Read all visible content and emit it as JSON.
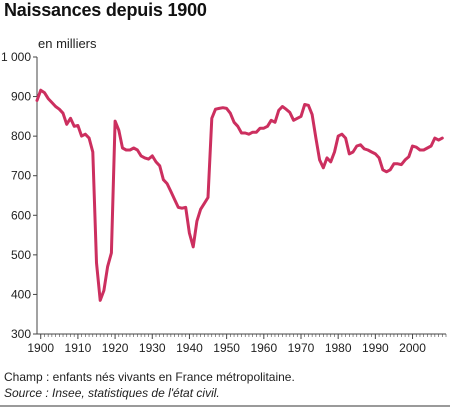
{
  "chart_data": {
    "type": "line",
    "title": "Naissances depuis 1900",
    "ylabel": "en milliers",
    "xlim": [
      1899,
      2009
    ],
    "ylim": [
      300,
      1000
    ],
    "yticks": [
      300,
      400,
      500,
      600,
      700,
      800,
      900,
      1000
    ],
    "ytick_labels": [
      "300",
      "400",
      "500",
      "600",
      "700",
      "800",
      "900",
      "1 000"
    ],
    "xticks": [
      1900,
      1910,
      1920,
      1930,
      1940,
      1950,
      1960,
      1970,
      1980,
      1990,
      2000
    ],
    "xtick_labels": [
      "1900",
      "1910",
      "1920",
      "1930",
      "1940",
      "1950",
      "1960",
      "1970",
      "1980",
      "1990",
      "2000"
    ],
    "grid": false,
    "line_color": "#cc2f5f",
    "series": [
      {
        "x": [
          1899,
          1900,
          1901,
          1902,
          1903,
          1904,
          1905,
          1906,
          1907,
          1908,
          1909,
          1910,
          1911,
          1912,
          1913,
          1914,
          1915,
          1916,
          1917,
          1918,
          1919,
          1920,
          1921,
          1922,
          1923,
          1924,
          1925,
          1926,
          1927,
          1928,
          1929,
          1930,
          1931,
          1932,
          1933,
          1934,
          1935,
          1936,
          1937,
          1938,
          1939,
          1940,
          1941,
          1942,
          1943,
          1944,
          1945,
          1946,
          1947,
          1948,
          1949,
          1950,
          1951,
          1952,
          1953,
          1954,
          1955,
          1956,
          1957,
          1958,
          1959,
          1960,
          1961,
          1962,
          1963,
          1964,
          1965,
          1966,
          1967,
          1968,
          1969,
          1970,
          1971,
          1972,
          1973,
          1974,
          1975,
          1976,
          1977,
          1978,
          1979,
          1980,
          1981,
          1982,
          1983,
          1984,
          1985,
          1986,
          1987,
          1988,
          1989,
          1990,
          1991,
          1992,
          1993,
          1994,
          1995,
          1996,
          1997,
          1998,
          1999,
          2000,
          2001,
          2002,
          2003,
          2004,
          2005,
          2006,
          2007,
          2008
        ],
        "values": [
          890,
          916,
          910,
          895,
          885,
          875,
          868,
          858,
          830,
          845,
          825,
          827,
          800,
          805,
          795,
          760,
          480,
          385,
          410,
          470,
          505,
          838,
          815,
          770,
          765,
          765,
          770,
          765,
          750,
          745,
          742,
          750,
          735,
          725,
          690,
          680,
          660,
          640,
          620,
          618,
          620,
          555,
          520,
          585,
          615,
          630,
          645,
          845,
          868,
          870,
          872,
          870,
          858,
          835,
          825,
          808,
          808,
          805,
          810,
          810,
          820,
          820,
          825,
          840,
          835,
          865,
          875,
          868,
          860,
          840,
          845,
          850,
          880,
          878,
          855,
          795,
          740,
          720,
          745,
          735,
          760,
          800,
          805,
          795,
          755,
          760,
          775,
          778,
          768,
          765,
          760,
          755,
          745,
          715,
          710,
          715,
          730,
          730,
          728,
          740,
          748,
          775,
          772,
          765,
          765,
          770,
          775,
          795,
          790,
          795
        ]
      }
    ]
  },
  "footer": {
    "scope": "Champ : enfants nés vivants en France métropolitaine.",
    "source": "Source : Insee, statistiques de l'état civil."
  }
}
